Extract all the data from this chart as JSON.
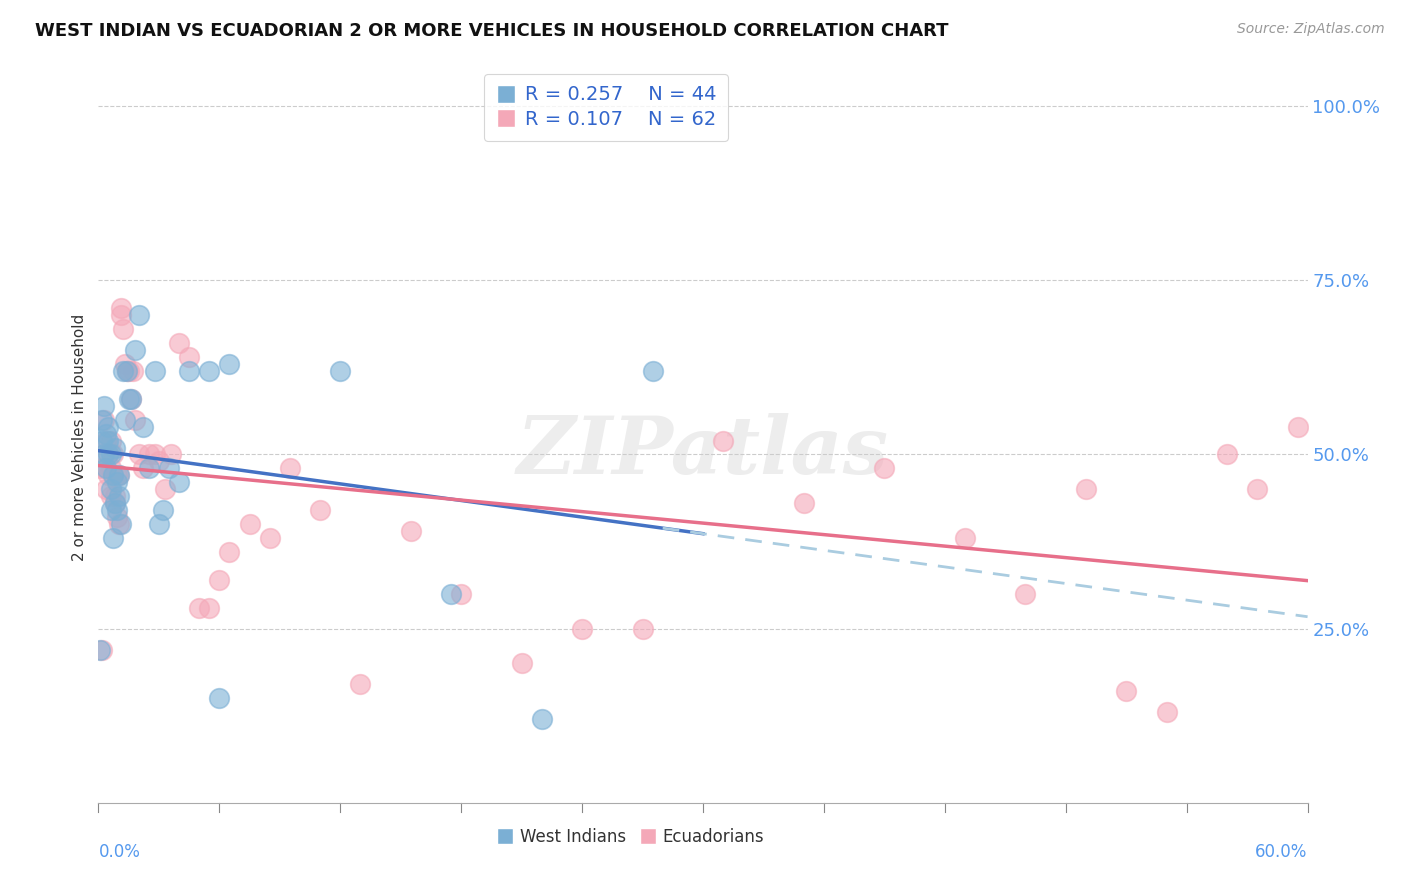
{
  "title": "WEST INDIAN VS ECUADORIAN 2 OR MORE VEHICLES IN HOUSEHOLD CORRELATION CHART",
  "source": "Source: ZipAtlas.com",
  "ylabel": "2 or more Vehicles in Household",
  "yticks": [
    0.0,
    0.25,
    0.5,
    0.75,
    1.0
  ],
  "ytick_labels": [
    "",
    "25.0%",
    "50.0%",
    "75.0%",
    "100.0%"
  ],
  "legend1_r": "0.257",
  "legend1_n": "44",
  "legend2_r": "0.107",
  "legend2_n": "62",
  "color_west_indian": "#7BAFD4",
  "color_ecuadorian": "#F4A8B8",
  "color_west_indian_line": "#4472C4",
  "color_ecuadorian_line": "#E76F8A",
  "color_dashed": "#AACCE0",
  "watermark": "ZIPatlas",
  "west_indian_x": [
    0.001,
    0.002,
    0.002,
    0.003,
    0.003,
    0.004,
    0.004,
    0.005,
    0.005,
    0.005,
    0.006,
    0.006,
    0.006,
    0.007,
    0.007,
    0.008,
    0.008,
    0.009,
    0.009,
    0.01,
    0.01,
    0.011,
    0.012,
    0.013,
    0.014,
    0.015,
    0.016,
    0.018,
    0.02,
    0.022,
    0.025,
    0.028,
    0.03,
    0.032,
    0.035,
    0.04,
    0.045,
    0.055,
    0.06,
    0.065,
    0.12,
    0.175,
    0.22,
    0.275
  ],
  "west_indian_y": [
    0.22,
    0.55,
    0.52,
    0.57,
    0.5,
    0.53,
    0.48,
    0.54,
    0.5,
    0.52,
    0.45,
    0.5,
    0.42,
    0.38,
    0.47,
    0.51,
    0.43,
    0.46,
    0.42,
    0.47,
    0.44,
    0.4,
    0.62,
    0.55,
    0.62,
    0.58,
    0.58,
    0.65,
    0.7,
    0.54,
    0.48,
    0.62,
    0.4,
    0.42,
    0.48,
    0.46,
    0.62,
    0.62,
    0.15,
    0.63,
    0.62,
    0.3,
    0.12,
    0.62
  ],
  "ecuadorian_x": [
    0.001,
    0.002,
    0.003,
    0.003,
    0.004,
    0.004,
    0.005,
    0.005,
    0.006,
    0.006,
    0.006,
    0.007,
    0.007,
    0.008,
    0.008,
    0.009,
    0.009,
    0.01,
    0.01,
    0.011,
    0.011,
    0.012,
    0.013,
    0.014,
    0.015,
    0.016,
    0.017,
    0.018,
    0.02,
    0.022,
    0.025,
    0.028,
    0.03,
    0.033,
    0.036,
    0.04,
    0.045,
    0.05,
    0.055,
    0.06,
    0.065,
    0.075,
    0.085,
    0.095,
    0.11,
    0.13,
    0.155,
    0.18,
    0.21,
    0.24,
    0.27,
    0.31,
    0.35,
    0.39,
    0.43,
    0.46,
    0.49,
    0.51,
    0.53,
    0.56,
    0.575,
    0.595
  ],
  "ecuadorian_y": [
    0.48,
    0.22,
    0.55,
    0.48,
    0.52,
    0.45,
    0.5,
    0.47,
    0.52,
    0.44,
    0.48,
    0.5,
    0.47,
    0.44,
    0.43,
    0.47,
    0.41,
    0.47,
    0.4,
    0.7,
    0.71,
    0.68,
    0.63,
    0.62,
    0.62,
    0.58,
    0.62,
    0.55,
    0.5,
    0.48,
    0.5,
    0.5,
    0.49,
    0.45,
    0.5,
    0.66,
    0.64,
    0.28,
    0.28,
    0.32,
    0.36,
    0.4,
    0.38,
    0.48,
    0.42,
    0.17,
    0.39,
    0.3,
    0.2,
    0.25,
    0.25,
    0.52,
    0.43,
    0.48,
    0.38,
    0.3,
    0.45,
    0.16,
    0.13,
    0.5,
    0.45,
    0.54
  ]
}
